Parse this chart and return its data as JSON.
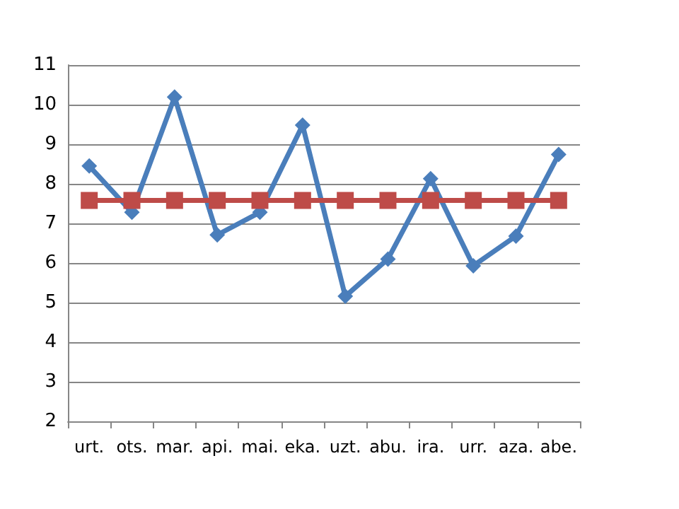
{
  "chart_data": {
    "type": "line",
    "categories": [
      "urt.",
      "ots.",
      "mar.",
      "api.",
      "mai.",
      "eka.",
      "uzt.",
      "abu.",
      "ira.",
      "urr.",
      "aza.",
      "abe."
    ],
    "series": [
      {
        "color": "#4a7ebb",
        "marker": "diamond",
        "values": [
          8.45,
          7.28,
          10.19,
          6.71,
          7.28,
          9.48,
          5.16,
          6.1,
          8.13,
          5.93,
          6.68,
          8.74
        ]
      },
      {
        "color": "#be4b48",
        "marker": "square",
        "values": [
          7.58,
          7.58,
          7.58,
          7.58,
          7.58,
          7.58,
          7.58,
          7.58,
          7.58,
          7.58,
          7.58,
          7.58
        ]
      }
    ],
    "ylim": [
      2,
      11
    ],
    "yticks": [
      2,
      3,
      4,
      5,
      6,
      7,
      8,
      9,
      10,
      11
    ],
    "grid": "y"
  }
}
